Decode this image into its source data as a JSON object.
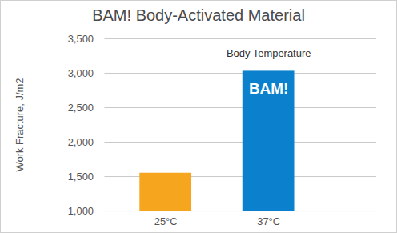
{
  "chart_data": {
    "type": "bar",
    "title": "BAM! Body-Activated Material",
    "y_label": "Work Fracture, J/m2",
    "categories": [
      "25°C",
      "37°C"
    ],
    "values": [
      1550,
      3030
    ],
    "colors": [
      "#f5a51e",
      "#0b80cc"
    ],
    "ylim": [
      1000,
      3500
    ],
    "yticks": [
      1000,
      1500,
      2000,
      2500,
      3000,
      3500
    ],
    "grid": true,
    "annotations": [
      {
        "category": "37°C",
        "text": "Body Temperature"
      },
      {
        "category": "37°C",
        "text": "BAM!"
      }
    ]
  }
}
